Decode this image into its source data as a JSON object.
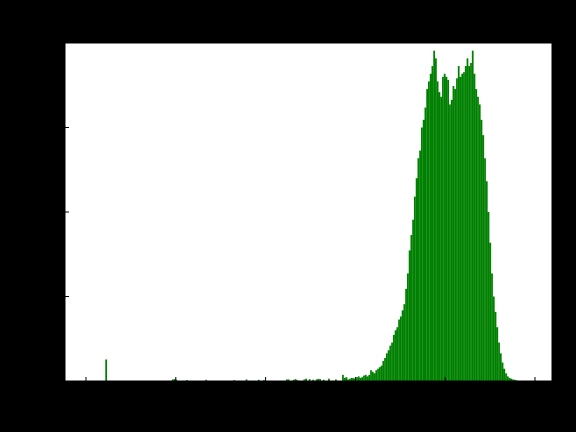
{
  "chart_data": {
    "type": "bar",
    "subtype": "histogram",
    "title": "",
    "xlabel": "",
    "ylabel": "",
    "bar_color": "#008000",
    "background_color": "#000000",
    "plot_background_color": "#ffffff",
    "grid": false,
    "legend": "none",
    "bins": 256,
    "xlim": [
      0,
      255
    ],
    "ylim": [
      0,
      2200
    ],
    "x_ticks": [],
    "y_ticks": [],
    "values": [
      0,
      0,
      0,
      0,
      0,
      0,
      0,
      0,
      0,
      0,
      0,
      140,
      0,
      0,
      0,
      0,
      0,
      0,
      0,
      0,
      0,
      0,
      0,
      0,
      0,
      0,
      0,
      0,
      0,
      0,
      0,
      0,
      0,
      0,
      0,
      0,
      0,
      0,
      0,
      0,
      0,
      0,
      0,
      0,
      0,
      0,
      0,
      0,
      0,
      10,
      12,
      8,
      0,
      0,
      0,
      0,
      0,
      6,
      0,
      0,
      0,
      0,
      0,
      0,
      0,
      0,
      0,
      0,
      8,
      0,
      0,
      0,
      0,
      0,
      0,
      0,
      0,
      0,
      0,
      0,
      0,
      0,
      0,
      0,
      6,
      0,
      0,
      0,
      0,
      0,
      0,
      10,
      0,
      0,
      0,
      0,
      0,
      0,
      8,
      0,
      0,
      6,
      0,
      0,
      0,
      0,
      0,
      0,
      0,
      0,
      0,
      0,
      0,
      0,
      10,
      10,
      0,
      0,
      8,
      12,
      6,
      0,
      0,
      0,
      10,
      15,
      0,
      12,
      0,
      8,
      0,
      10,
      14,
      12,
      0,
      8,
      0,
      0,
      15,
      0,
      0,
      0,
      10,
      0,
      0,
      0,
      40,
      20,
      25,
      10,
      15,
      20,
      18,
      15,
      25,
      30,
      20,
      25,
      35,
      40,
      30,
      40,
      70,
      60,
      50,
      70,
      80,
      90,
      100,
      130,
      150,
      180,
      200,
      230,
      250,
      300,
      330,
      350,
      400,
      420,
      460,
      500,
      600,
      700,
      850,
      950,
      1050,
      1200,
      1320,
      1450,
      1500,
      1650,
      1700,
      1780,
      1900,
      1950,
      2000,
      2050,
      2150,
      2100,
      1950,
      1880,
      1850,
      1980,
      2000,
      1980,
      1960,
      1800,
      1830,
      1920,
      1900,
      1970,
      2050,
      1980,
      2000,
      2010,
      2050,
      2100,
      2050,
      2070,
      2150,
      2000,
      1900,
      1850,
      1800,
      1700,
      1600,
      1450,
      1300,
      1100,
      900,
      700,
      550,
      450,
      350,
      250,
      180,
      120,
      80,
      50,
      30,
      20,
      15,
      10,
      8,
      5,
      0,
      0,
      0,
      0,
      0,
      0,
      0,
      0,
      0,
      0,
      0,
      0,
      0,
      0,
      0,
      0,
      0,
      0,
      0,
      0
    ]
  }
}
